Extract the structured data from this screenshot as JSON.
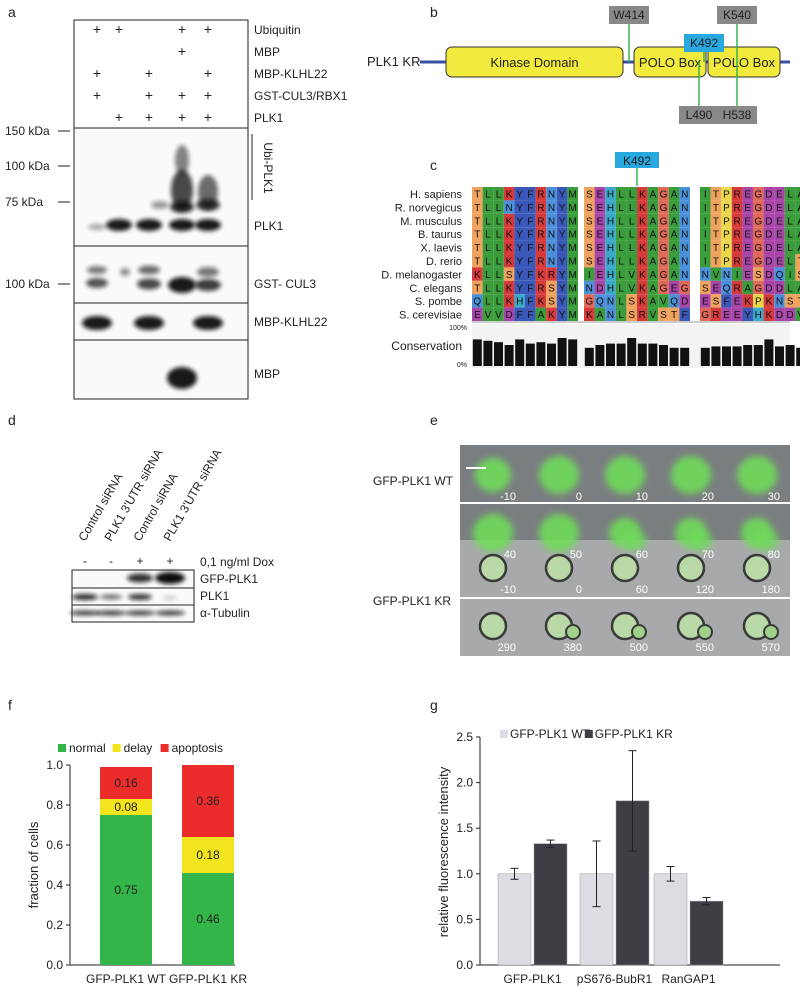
{
  "panel_labels": {
    "a": "a",
    "b": "b",
    "c": "c",
    "d": "d",
    "e": "e",
    "f": "f",
    "g": "g"
  },
  "panel_a": {
    "conditions": [
      {
        "label": "Ubiquitin",
        "marks": [
          "+",
          "+",
          "",
          "+",
          "+"
        ]
      },
      {
        "label": "MBP",
        "marks": [
          "",
          "",
          "",
          "+",
          ""
        ]
      },
      {
        "label": "MBP-KLHL22",
        "marks": [
          "+",
          "",
          "+",
          "",
          "+"
        ]
      },
      {
        "label": "GST-CUL3/RBX1",
        "marks": [
          "+",
          "",
          "+",
          "+",
          "+"
        ]
      },
      {
        "label": "PLK1",
        "marks": [
          "",
          "+",
          "+",
          "+",
          "+"
        ]
      }
    ],
    "mw_markers": [
      "150 kDa",
      "100 kDa",
      "75 kDa",
      "100 kDa"
    ],
    "blot_labels": {
      "ubi": "Ubi-PLK1",
      "plk1": "PLK1",
      "gst": "GST- CUL3",
      "mbpklhl": "MBP-KLHL22",
      "mbp": "MBP"
    }
  },
  "panel_b": {
    "construct": "PLK1 KR",
    "domains": [
      "Kinase Domain",
      "POLO Box",
      "POLO Box"
    ],
    "sites_top": [
      "W414",
      "K492",
      "K540"
    ],
    "sites_bottom": [
      "L490",
      "H538"
    ]
  },
  "panel_c": {
    "highlight": "K492",
    "species": [
      "H. sapiens",
      "R. norvegicus",
      "M. musculus",
      "B. taurus",
      "X. laevis",
      "D. rerio",
      "D. melanogaster",
      "C. elegans",
      "S. pombe",
      "S. cerevisiae"
    ],
    "block1": [
      "TLLKYFRNYM",
      "TLLNYFRNYM",
      "TLLKYFRNYM",
      "TLLKYFRNYM",
      "TLLKYFRNYM",
      "TLLKYFRNYM",
      "KLLSYFKRYM",
      "TLLKYFRSYM",
      "QLLKHFKSYM",
      "EVVDFFAKYM"
    ],
    "block2": [
      "SEHLLKAGAN",
      "SEHLLKAGAN",
      "SEHLLKAGAN",
      "SEHLLKAGAN",
      "SEHLLKAGAN",
      "SEHLLKAGAN",
      "IEHLVKAGAN",
      "NDHLVKAGEG",
      "GQNLSKAVQD",
      "KANLSRVSTF"
    ],
    "block3": [
      "ITPREGDELA",
      "ITPREGDELA",
      "ITPREGDELA",
      "ITPREGDELA",
      "ITPREGDELA",
      "ITPREGDELT",
      "NVNIESDQIS",
      "SEQRAGDDLA",
      "ESFEKPKNST",
      "GREEYHKDDV"
    ],
    "conservation_label": "Conservation",
    "pct_high": "100%",
    "pct_low": "0%",
    "conservation1": [
      0.95,
      0.9,
      0.85,
      0.75,
      0.95,
      0.8,
      0.85,
      0.8,
      1.0,
      0.95
    ],
    "conservation2": [
      0.65,
      0.75,
      0.8,
      0.8,
      1.0,
      0.8,
      0.8,
      0.75,
      0.65,
      0.65
    ],
    "conservation3": [
      0.65,
      0.7,
      0.7,
      0.7,
      0.75,
      0.75,
      0.95,
      0.7,
      0.75,
      0.65
    ]
  },
  "panel_d": {
    "lanes": [
      "Control siRNA",
      "PLK1 3'UTR siRNA",
      "Control siRNA",
      "PLK1 3'UTR siRNA"
    ],
    "dox_marks": [
      "-",
      "-",
      "+",
      "+"
    ],
    "dox_label": "0,1 ng/ml Dox",
    "blot_labels": [
      "GFP-PLK1",
      "PLK1",
      "α-Tubulin"
    ]
  },
  "panel_e": {
    "wt_label": "GFP-PLK1 WT",
    "kr_label": "GFP-PLK1 KR",
    "wt_times": [
      "-10",
      "0",
      "10",
      "20",
      "30",
      "40",
      "50",
      "60",
      "70",
      "80"
    ],
    "kr_times": [
      "-10",
      "0",
      "60",
      "120",
      "180",
      "290",
      "380",
      "500",
      "550",
      "570"
    ]
  },
  "panel_f": {
    "chart_data": {
      "type": "bar",
      "stacked": true,
      "categories": [
        "GFP-PLK1 WT",
        "GFP-PLK1 KR"
      ],
      "series": [
        {
          "name": "normal",
          "values": [
            0.75,
            0.46
          ],
          "color": "#33b54a"
        },
        {
          "name": "delay",
          "values": [
            0.08,
            0.18
          ],
          "color": "#f2e51d"
        },
        {
          "name": "apoptosis",
          "values": [
            0.16,
            0.36
          ],
          "color": "#ec2b2b"
        }
      ],
      "ylabel": "fraction of cells",
      "ylim": [
        0,
        1.0
      ],
      "yticks": [
        "0.0",
        "0.2",
        "0.4",
        "0.6",
        "0.8",
        "1.0"
      ],
      "legend": "top",
      "value_labels": [
        [
          "0.75",
          "0.08",
          "0.16"
        ],
        [
          "0.46",
          "0.18",
          "0.36"
        ]
      ]
    }
  },
  "panel_g": {
    "chart_data": {
      "type": "bar",
      "categories": [
        "GFP-PLK1",
        "pS676-BubR1",
        "RanGAP1"
      ],
      "series": [
        {
          "name": "GFP-PLK1 WT",
          "values": [
            1.0,
            1.0,
            1.0
          ],
          "errors": [
            0.06,
            0.36,
            0.08
          ],
          "color": "#dcdde2"
        },
        {
          "name": "GFP-PLK1 KR",
          "values": [
            1.33,
            1.8,
            0.7
          ],
          "errors": [
            0.04,
            0.55,
            0.04
          ],
          "color": "#3d3f44"
        }
      ],
      "ylabel": "relative fluorescence intensity",
      "ylim": [
        0,
        2.5
      ],
      "yticks": [
        "0.0",
        "0.5",
        "1.0",
        "1.5",
        "2.0",
        "2.5"
      ],
      "legend": "top"
    }
  }
}
